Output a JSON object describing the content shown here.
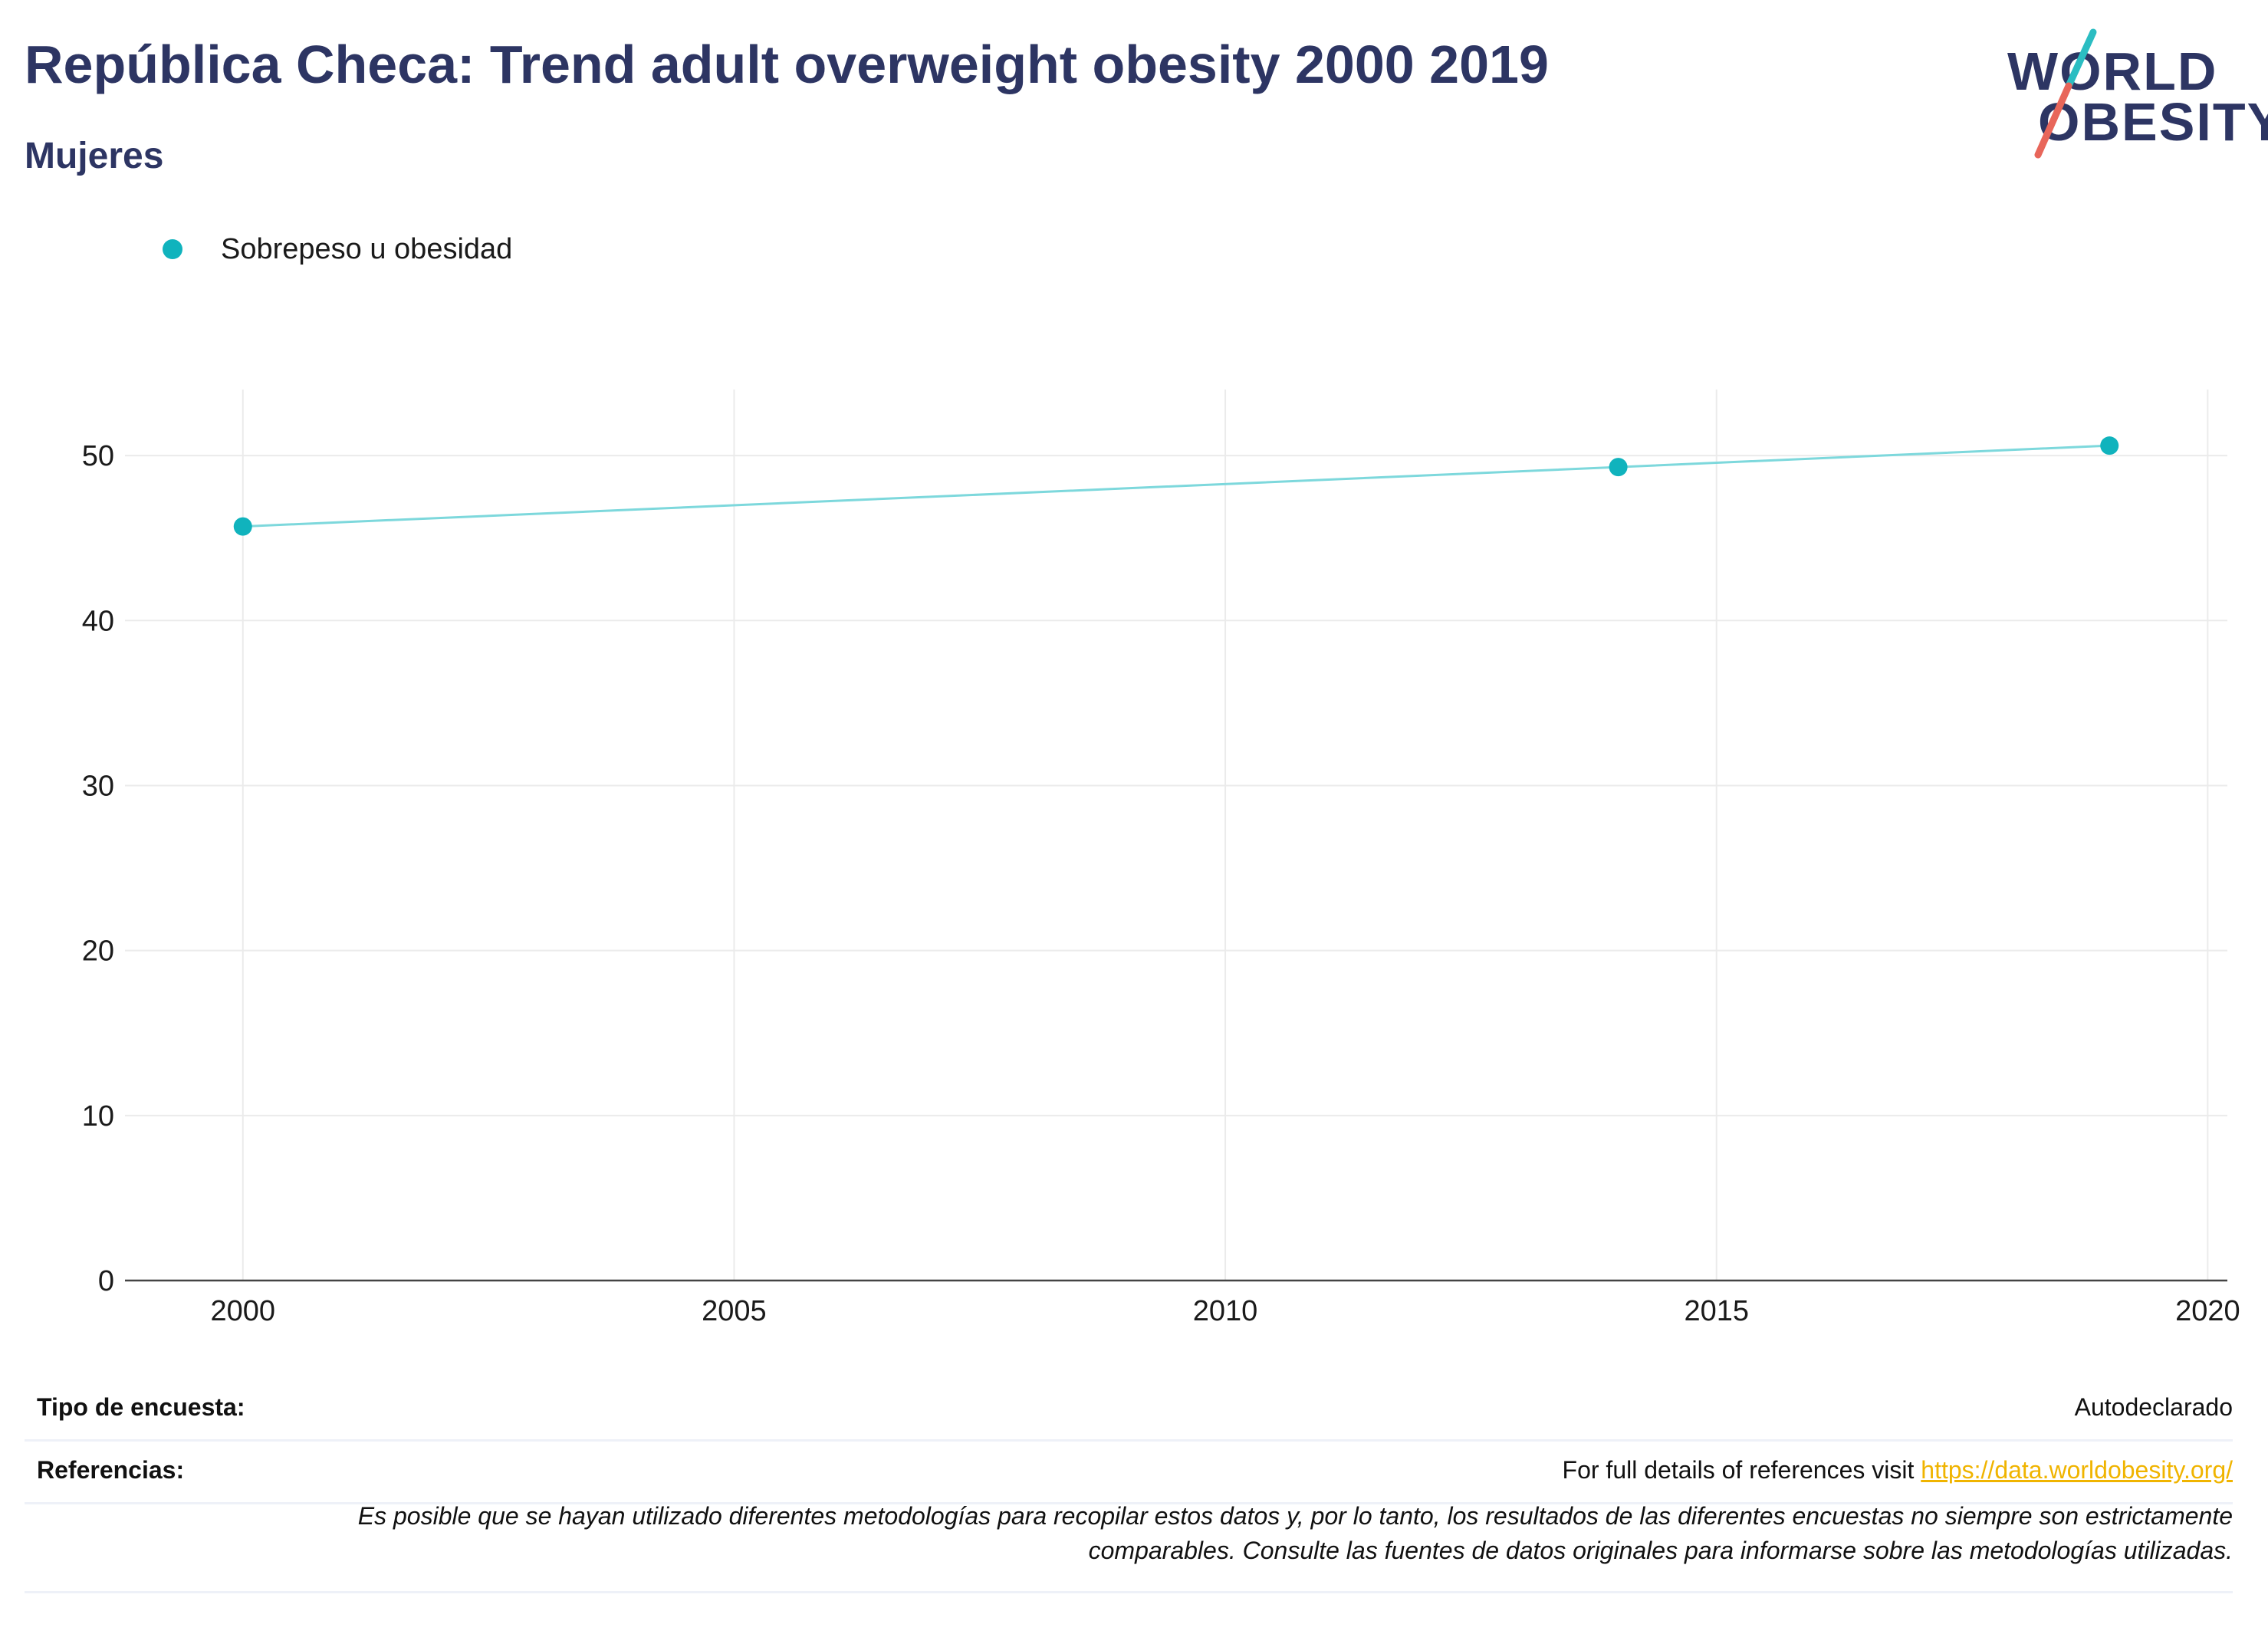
{
  "header": {
    "title": "República Checa: Trend adult overweight obesity 2000 2019",
    "subtitle": "Mujeres"
  },
  "logo": {
    "line1": "WORLD",
    "line2": "OBESITY",
    "colors": {
      "text": "#2d3563",
      "slash_teal": "#2bbdc2",
      "slash_coral": "#e8665a"
    }
  },
  "chart_data": {
    "type": "line",
    "title": "",
    "xlabel": "",
    "ylabel": "",
    "series": [
      {
        "name": "Sobrepeso u obesidad",
        "color": "#10b3bd",
        "line_color": "#7dd8dc",
        "x": [
          2000,
          2014,
          2019
        ],
        "y": [
          45.7,
          49.3,
          50.6
        ]
      }
    ],
    "xlim": [
      1998.8,
      2020.2
    ],
    "ylim": [
      0,
      54
    ],
    "xticks": [
      2000,
      2005,
      2010,
      2015,
      2020
    ],
    "yticks": [
      0,
      10,
      20,
      30,
      40,
      50
    ],
    "grid": true,
    "legend_position": "top-left"
  },
  "info": {
    "survey_label": "Tipo de encuesta:",
    "survey_value": "Autodeclarado",
    "references_label": "Referencias:",
    "references_text": "For full details of references visit ",
    "references_link": "https://data.worldobesity.org/",
    "note_line1": "Es posible que se hayan utilizado diferentes metodologías para recopilar estos datos y, por lo tanto, los resultados de las diferentes encuestas no siempre son estrictamente",
    "note_line2": "comparables. Consulte las fuentes de datos originales para informarse sobre las metodologías utilizadas."
  }
}
